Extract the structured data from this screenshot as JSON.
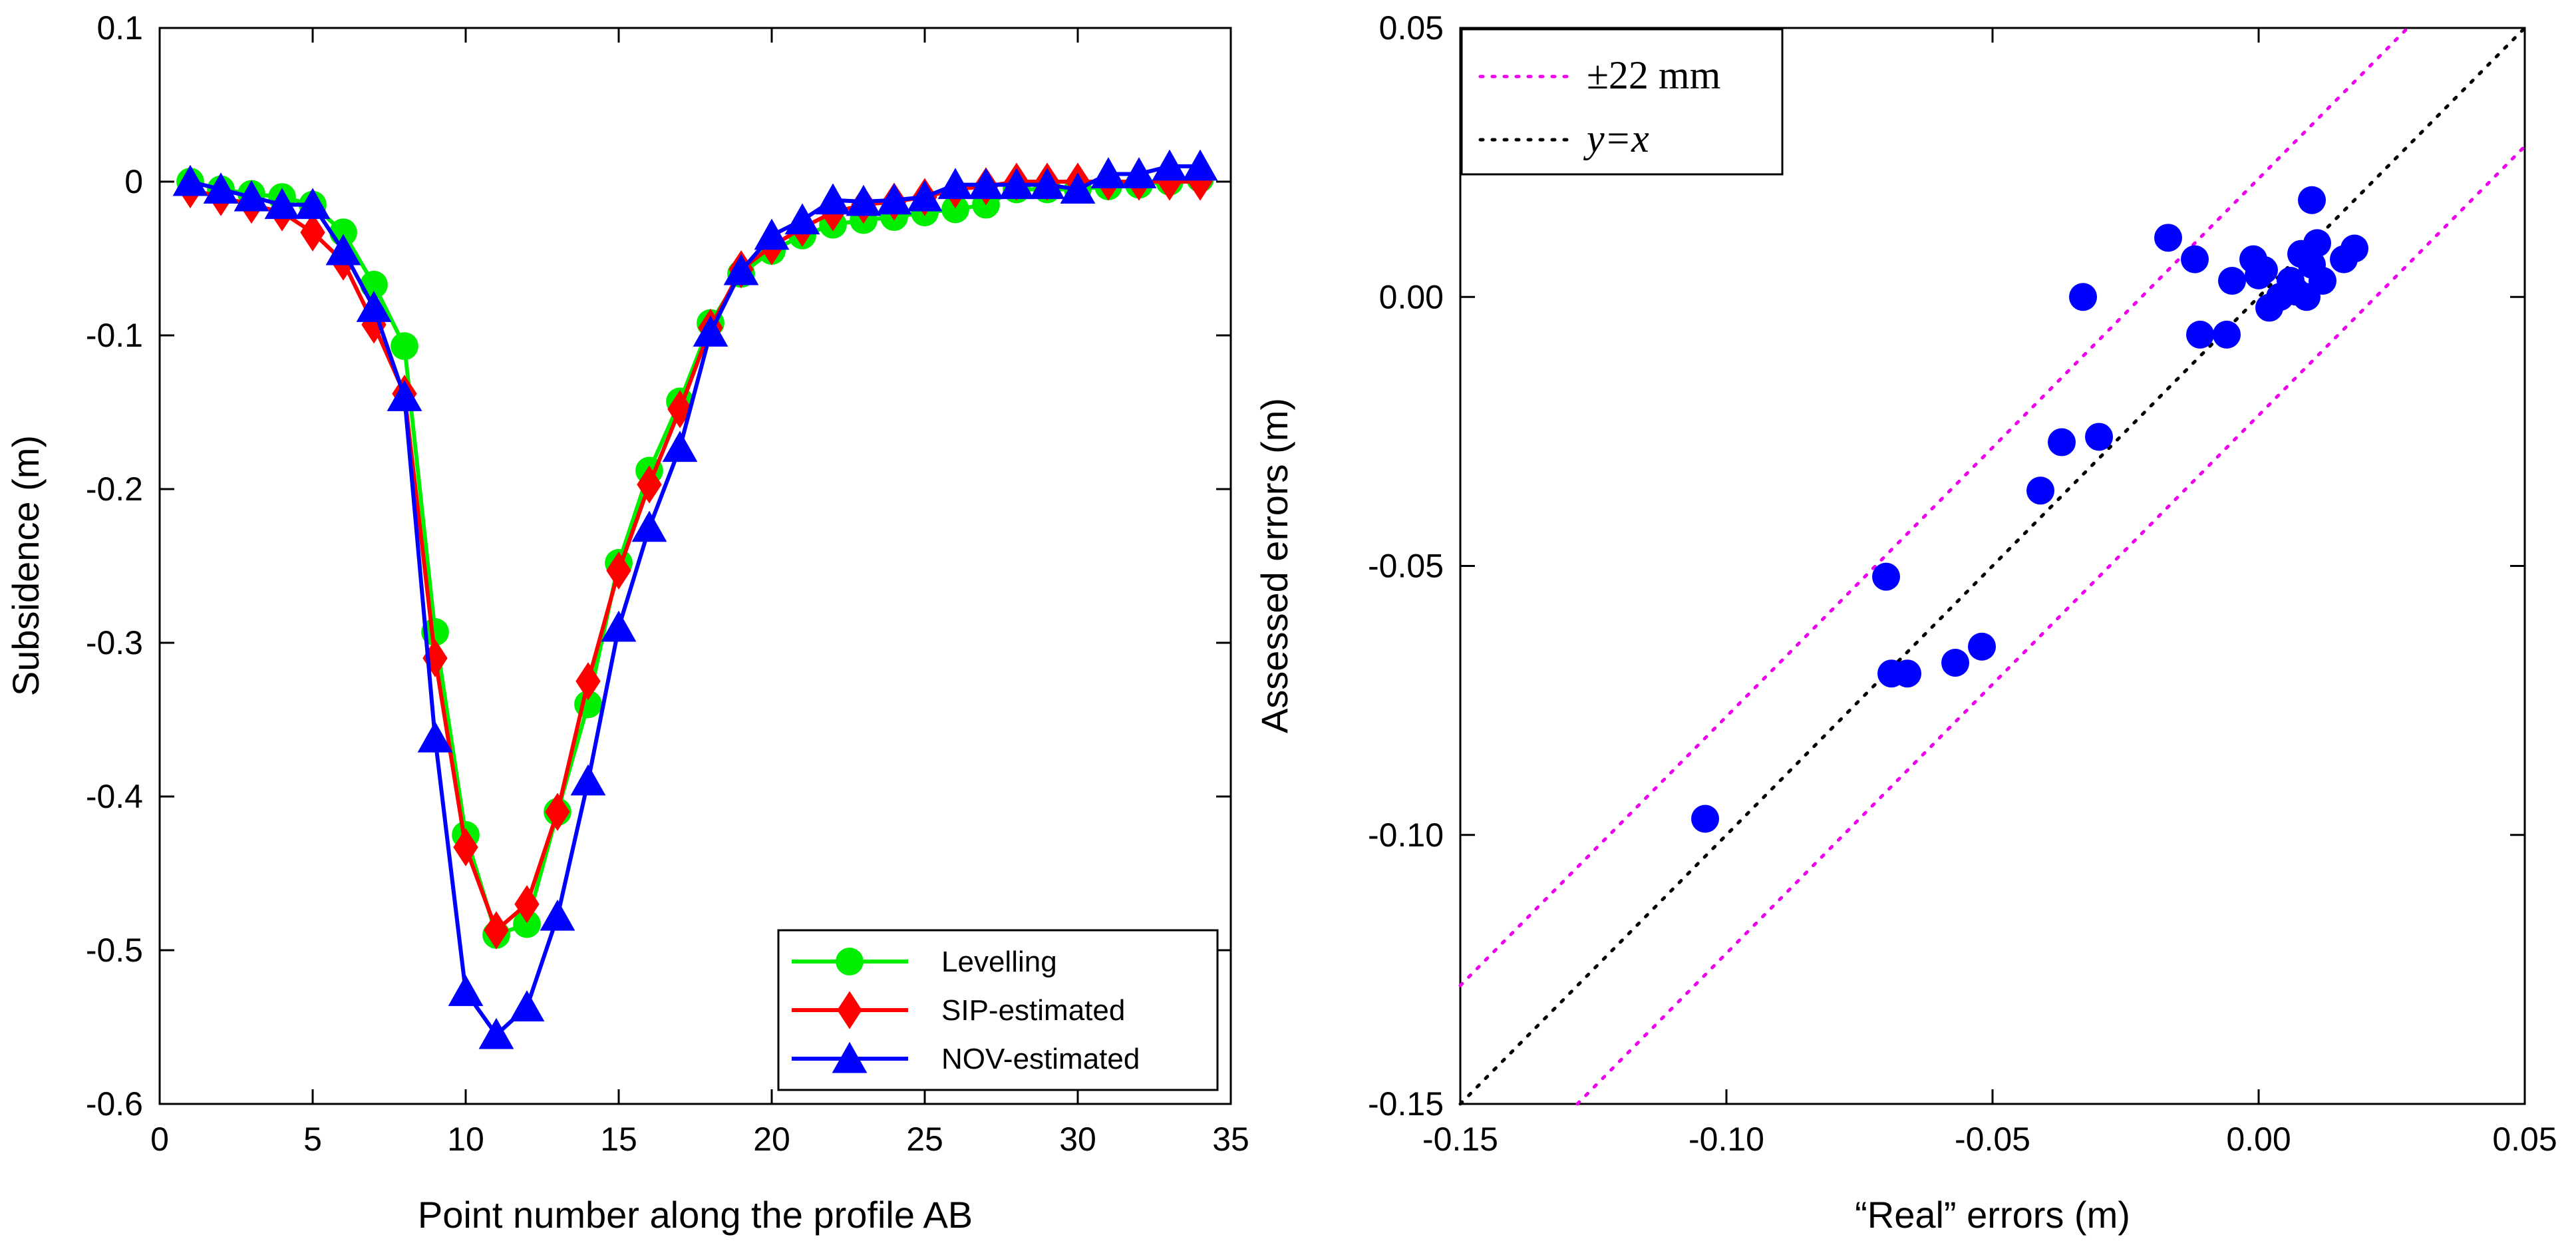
{
  "colors": {
    "levelling": "#00ee00",
    "sip": "#ff0000",
    "nov": "#0000ff",
    "band": "#ee00ee",
    "identity": "#000000",
    "scatter": "#0000ff"
  },
  "chart_data": [
    {
      "type": "line",
      "xlabel": "Point number along the profile AB",
      "ylabel": "Subsidence (m)",
      "xlim": [
        0,
        35
      ],
      "ylim": [
        -0.6,
        0.1
      ],
      "xticks": [
        "0",
        "5",
        "10",
        "15",
        "20",
        "25",
        "30",
        "35"
      ],
      "yticks": [
        "0.1",
        "0",
        "-0.1",
        "-0.2",
        "-0.3",
        "-0.4",
        "-0.5",
        "-0.6"
      ],
      "legend_position": "bottom-right",
      "x": [
        1,
        2,
        3,
        4,
        5,
        6,
        7,
        8,
        9,
        10,
        11,
        12,
        13,
        14,
        15,
        16,
        17,
        18,
        19,
        20,
        21,
        22,
        23,
        24,
        25,
        26,
        27,
        28,
        29,
        30,
        31,
        32,
        33,
        34
      ],
      "series": [
        {
          "name": "Levelling",
          "marker": "circle",
          "values": [
            0.0,
            -0.005,
            -0.008,
            -0.01,
            -0.015,
            -0.033,
            -0.067,
            -0.107,
            -0.293,
            -0.425,
            -0.49,
            -0.483,
            -0.41,
            -0.34,
            -0.248,
            -0.188,
            -0.143,
            -0.092,
            -0.06,
            -0.045,
            -0.035,
            -0.028,
            -0.025,
            -0.023,
            -0.02,
            -0.018,
            -0.015,
            -0.005,
            -0.005,
            -0.005,
            -0.003,
            -0.002,
            0.0,
            0.002
          ]
        },
        {
          "name": "SIP-estimated",
          "marker": "diamond",
          "values": [
            -0.005,
            -0.01,
            -0.015,
            -0.02,
            -0.033,
            -0.052,
            -0.093,
            -0.138,
            -0.31,
            -0.433,
            -0.487,
            -0.47,
            -0.41,
            -0.325,
            -0.253,
            -0.197,
            -0.148,
            -0.095,
            -0.057,
            -0.042,
            -0.03,
            -0.02,
            -0.015,
            -0.013,
            -0.01,
            -0.005,
            -0.003,
            0.0,
            0.0,
            0.0,
            0.0,
            0.0,
            0.0,
            0.0
          ]
        },
        {
          "name": "NOV-estimated",
          "marker": "triangle",
          "values": [
            0.0,
            -0.005,
            -0.01,
            -0.015,
            -0.015,
            -0.045,
            -0.082,
            -0.14,
            -0.362,
            -0.527,
            -0.555,
            -0.537,
            -0.478,
            -0.39,
            -0.29,
            -0.225,
            -0.173,
            -0.098,
            -0.058,
            -0.035,
            -0.025,
            -0.012,
            -0.013,
            -0.012,
            -0.01,
            -0.002,
            -0.002,
            -0.002,
            -0.002,
            -0.005,
            0.005,
            0.005,
            0.01,
            0.01
          ]
        }
      ]
    },
    {
      "type": "scatter",
      "xlabel": "“Real” errors (m)",
      "ylabel": "Assessed errors (m)",
      "xlim": [
        -0.15,
        0.05
      ],
      "ylim": [
        -0.15,
        0.05
      ],
      "xticks": [
        "-0.15",
        "-0.10",
        "-0.05",
        "0.00",
        "0.05"
      ],
      "yticks": [
        "0.05",
        "0.00",
        "-0.05",
        "-0.10",
        "-0.15"
      ],
      "legend_position": "top-left",
      "lines": [
        {
          "name": "±22  mm",
          "offset": 0.022,
          "style": "dotted"
        },
        {
          "name": "y=x",
          "offset": 0.0,
          "style": "dotted"
        }
      ],
      "points": [
        {
          "x": -0.104,
          "y": -0.097
        },
        {
          "x": -0.07,
          "y": -0.052
        },
        {
          "x": -0.069,
          "y": -0.07
        },
        {
          "x": -0.066,
          "y": -0.07
        },
        {
          "x": -0.057,
          "y": -0.068
        },
        {
          "x": -0.052,
          "y": -0.065
        },
        {
          "x": -0.041,
          "y": -0.036
        },
        {
          "x": -0.037,
          "y": -0.027
        },
        {
          "x": -0.03,
          "y": -0.026
        },
        {
          "x": -0.033,
          "y": 0.0
        },
        {
          "x": -0.017,
          "y": 0.011
        },
        {
          "x": -0.012,
          "y": 0.007
        },
        {
          "x": -0.011,
          "y": -0.007
        },
        {
          "x": -0.006,
          "y": -0.007
        },
        {
          "x": -0.005,
          "y": 0.003
        },
        {
          "x": -0.001,
          "y": 0.007
        },
        {
          "x": 0.0,
          "y": 0.004
        },
        {
          "x": 0.001,
          "y": 0.005
        },
        {
          "x": 0.002,
          "y": -0.002
        },
        {
          "x": 0.004,
          "y": 0.0
        },
        {
          "x": 0.006,
          "y": 0.003
        },
        {
          "x": 0.007,
          "y": 0.001
        },
        {
          "x": 0.008,
          "y": 0.008
        },
        {
          "x": 0.009,
          "y": 0.0
        },
        {
          "x": 0.01,
          "y": 0.006
        },
        {
          "x": 0.01,
          "y": 0.018
        },
        {
          "x": 0.011,
          "y": 0.01
        },
        {
          "x": 0.012,
          "y": 0.003
        },
        {
          "x": 0.016,
          "y": 0.007
        },
        {
          "x": 0.018,
          "y": 0.009
        }
      ]
    }
  ]
}
